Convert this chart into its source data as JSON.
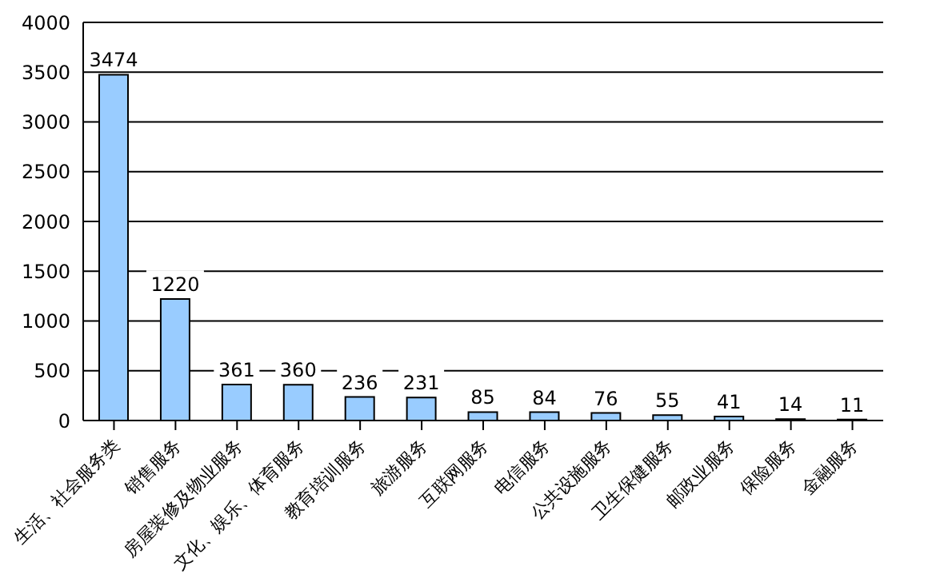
{
  "chart_data": {
    "type": "bar",
    "categories": [
      "生活、社会服务类",
      "销售服务",
      "房屋装修及物业服务",
      "文化、娱乐、体育服务",
      "教育培训服务",
      "旅游服务",
      "互联网服务",
      "电信服务",
      "公共设施服务",
      "卫生保健服务",
      "邮政业服务",
      "保险服务",
      "金融服务"
    ],
    "values": [
      3474,
      1220,
      361,
      360,
      236,
      231,
      85,
      84,
      76,
      55,
      41,
      14,
      11
    ],
    "color": "#99ccff",
    "ylim": [
      0,
      4000
    ],
    "yticks": [
      0,
      500,
      1000,
      1500,
      2000,
      2500,
      3000,
      3500,
      4000
    ],
    "grid": "y",
    "data_labels": true,
    "legend": false
  }
}
